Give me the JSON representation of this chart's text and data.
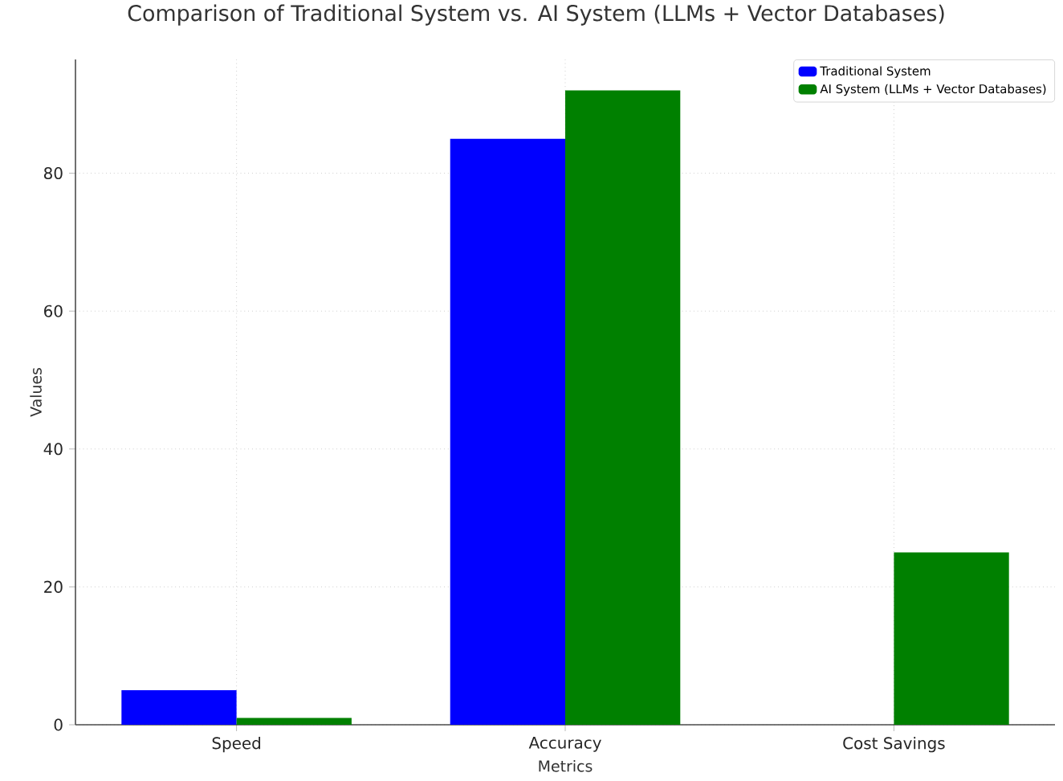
{
  "chart_data": {
    "type": "bar",
    "title": "Comparison of Traditional System vs. AI System (LLMs + Vector Databases)",
    "xlabel": "Metrics",
    "ylabel": "Values",
    "categories": [
      "Speed",
      "Accuracy",
      "Cost Savings"
    ],
    "series": [
      {
        "name": "Traditional System",
        "color": "#0000ff",
        "values": [
          5,
          85,
          0
        ]
      },
      {
        "name": "AI System (LLMs + Vector Databases)",
        "color": "#008000",
        "values": [
          1,
          92,
          25
        ]
      }
    ],
    "ylim": [
      0,
      96.5
    ],
    "yticks": [
      0,
      20,
      40,
      60,
      80
    ],
    "grid": true,
    "legend": "top right"
  }
}
